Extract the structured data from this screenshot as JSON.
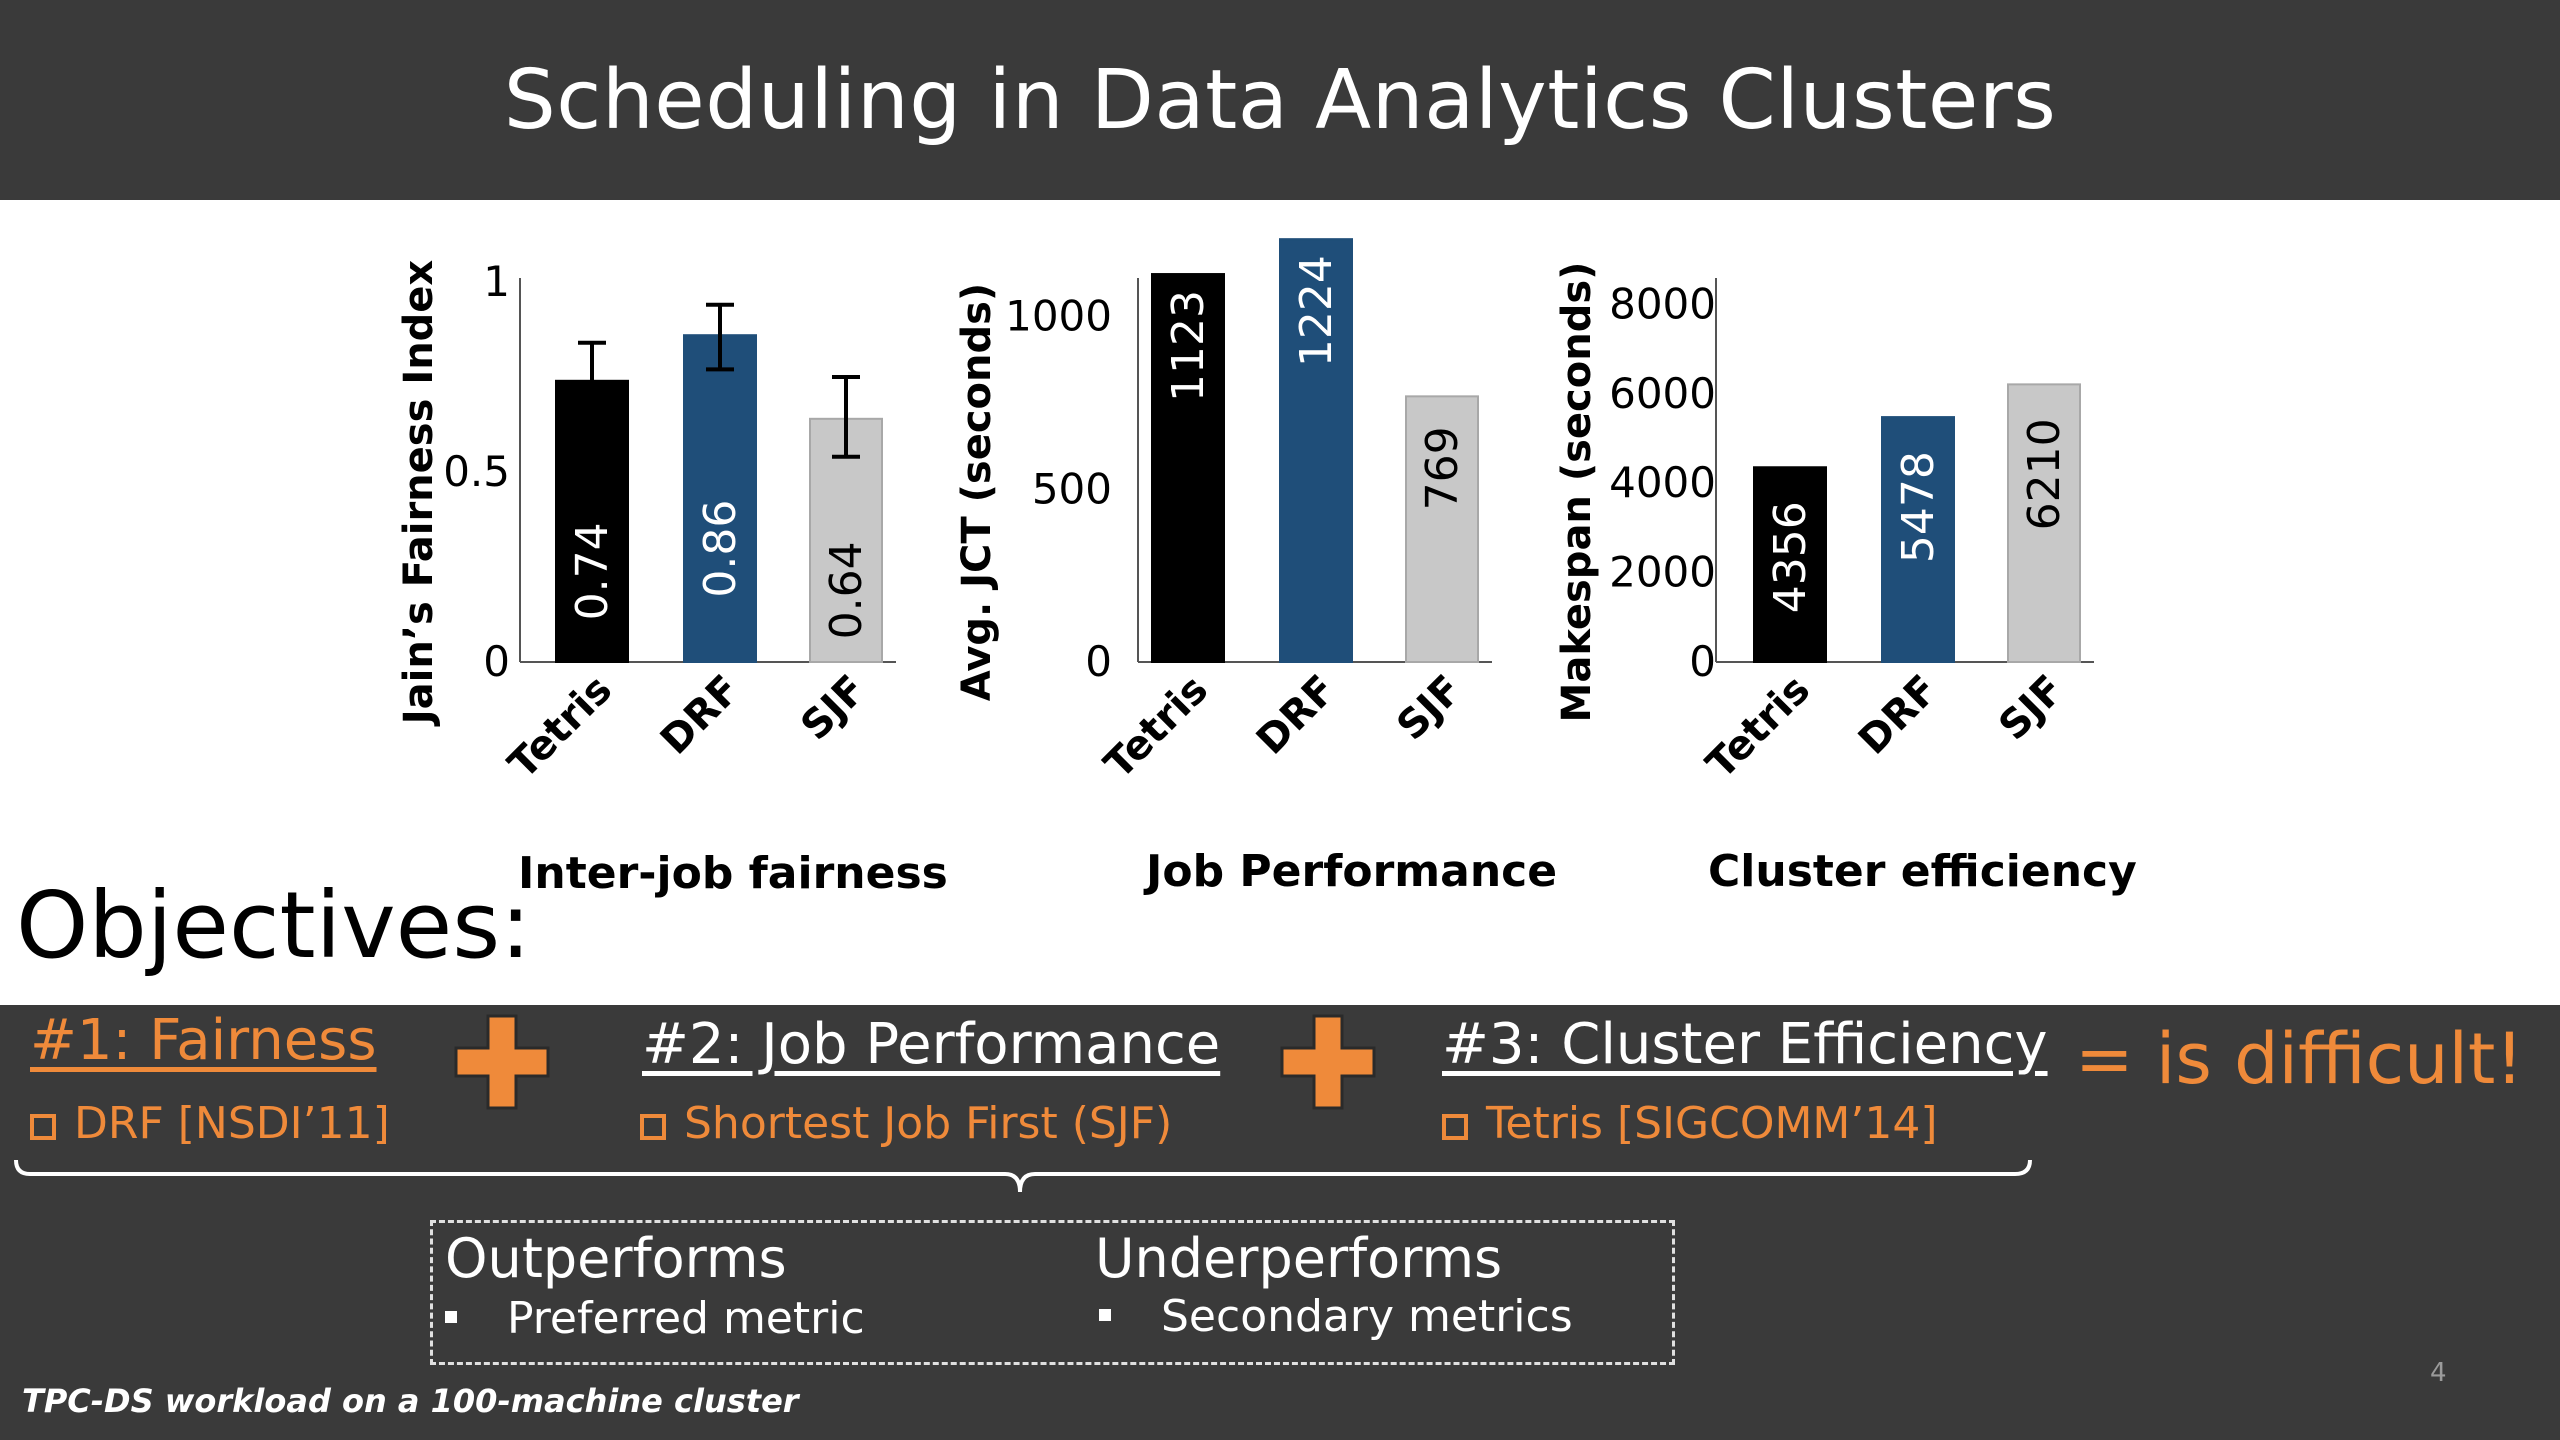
{
  "slide": {
    "title": "Scheduling in Data Analytics Clusters",
    "objectives_label": "Objectives:",
    "page_number": "4",
    "footnote": "TPC-DS workload on a 100-machine cluster"
  },
  "colors": {
    "tetris": "#000000",
    "drf": "#1f4e79",
    "sjf": "#c8c8c8",
    "accent": "#ef8a3a",
    "dark_bg": "#3a3a3a"
  },
  "objectives": [
    {
      "title": "#1: Fairness",
      "item": "DRF [NSDI’11]"
    },
    {
      "title": "#2: Job Performance",
      "item": "Shortest Job First (SJF)"
    },
    {
      "title": "#3: Cluster Efficiency",
      "item": "Tetris [SIGCOMM’14]"
    }
  ],
  "conclusion": "=  is difficult!",
  "summary": {
    "outperforms_title": "Outperforms",
    "outperforms_item": "Preferred metric",
    "underperforms_title": "Underperforms",
    "underperforms_item": "Secondary metrics"
  },
  "chart_data": [
    {
      "type": "bar",
      "title": "Inter-job fairness",
      "ylabel": "Jain’s Fairness Index",
      "categories": [
        "Tetris",
        "DRF",
        "SJF"
      ],
      "values": [
        0.74,
        0.86,
        0.64
      ],
      "value_labels": [
        "0.74",
        "0.86",
        "0.64"
      ],
      "error_low": [
        0.65,
        0.77,
        0.54
      ],
      "error_high": [
        0.84,
        0.94,
        0.75
      ],
      "ylim": [
        0,
        1
      ],
      "yticks": [
        0,
        0.5,
        1
      ],
      "ytick_labels": [
        "0",
        "0.5",
        "1"
      ]
    },
    {
      "type": "bar",
      "title": "Job Performance",
      "ylabel": "Avg. JCT (seconds)",
      "categories": [
        "Tetris",
        "DRF",
        "SJF"
      ],
      "values": [
        1123,
        1224,
        769
      ],
      "value_labels": [
        "1123",
        "1224",
        "769"
      ],
      "ylim": [
        0,
        1100
      ],
      "yticks": [
        0,
        500,
        1000
      ],
      "ytick_labels": [
        "0",
        "500",
        "1000"
      ]
    },
    {
      "type": "bar",
      "title": "Cluster efficiency",
      "ylabel": "Makespan (seconds)",
      "categories": [
        "Tetris",
        "DRF",
        "SJF"
      ],
      "values": [
        4356,
        5478,
        6210
      ],
      "value_labels": [
        "4356",
        "5478",
        "6210"
      ],
      "ylim": [
        0,
        8500
      ],
      "yticks": [
        0,
        2000,
        4000,
        6000,
        8000
      ],
      "ytick_labels": [
        "0",
        "2000",
        "4000",
        "6000",
        "8000"
      ]
    }
  ]
}
